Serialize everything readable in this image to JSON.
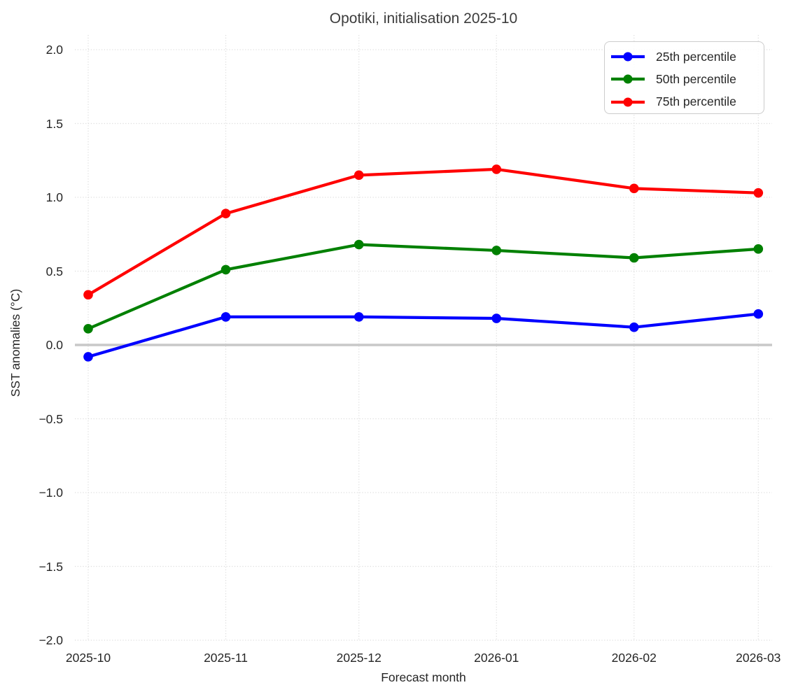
{
  "chart_data": {
    "type": "line",
    "title": "Opotiki, initialisation 2025-10",
    "xlabel": "Forecast month",
    "ylabel": "SST anomalies (°C)",
    "categories": [
      "2025-10",
      "2025-11",
      "2025-12",
      "2026-01",
      "2026-02",
      "2026-03"
    ],
    "series": [
      {
        "name": "25th percentile",
        "color": "#0000ff",
        "marker": "circle",
        "values": [
          -0.08,
          0.19,
          0.19,
          0.18,
          0.12,
          0.21
        ]
      },
      {
        "name": "50th percentile",
        "color": "#008000",
        "marker": "circle",
        "values": [
          0.11,
          0.51,
          0.68,
          0.64,
          0.59,
          0.65
        ]
      },
      {
        "name": "75th percentile",
        "color": "#ff0000",
        "marker": "circle",
        "values": [
          0.34,
          0.89,
          1.15,
          1.19,
          1.06,
          1.03
        ]
      }
    ],
    "ylim": [
      -2.0,
      2.0
    ],
    "yticks": [
      2.0,
      1.5,
      1.0,
      0.5,
      0.0,
      -0.5,
      -1.0,
      -1.5,
      -2.0
    ],
    "grid": true,
    "grid_style": "dotted",
    "grid_color": "#dcdcdc",
    "zero_line": true,
    "zero_line_color": "#c8c8c8",
    "legend_position": "upper right",
    "background": "#ffffff",
    "x_axis_type": "date-monthly"
  }
}
